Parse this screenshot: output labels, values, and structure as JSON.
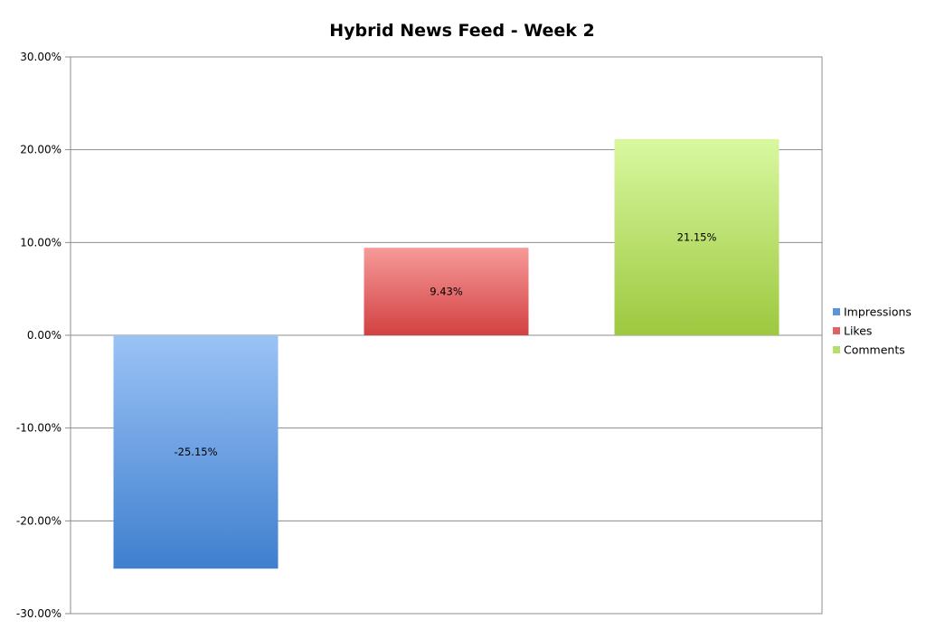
{
  "chart_data": {
    "type": "bar",
    "title": "Hybrid News Feed - Week 2",
    "xlabel": "",
    "ylabel": "",
    "ylim": [
      -30,
      30
    ],
    "yticks": [
      {
        "value": 30,
        "label": "30.00%"
      },
      {
        "value": 20,
        "label": "20.00%"
      },
      {
        "value": 10,
        "label": "10.00%"
      },
      {
        "value": 0,
        "label": "0.00%"
      },
      {
        "value": -10,
        "label": "-10.00%"
      },
      {
        "value": -20,
        "label": "-20.00%"
      },
      {
        "value": -30,
        "label": "-30.00%"
      }
    ],
    "grid": true,
    "legend_position": "right",
    "series": [
      {
        "name": "Impressions",
        "value": -25.15,
        "label": "-25.15%",
        "color": "#5b95d9",
        "color_light": "#9bc3f5",
        "color_dark": "#3f7fcf"
      },
      {
        "name": "Likes",
        "value": 9.43,
        "label": "9.43%",
        "color": "#e06262",
        "color_light": "#f79a9a",
        "color_dark": "#d24141"
      },
      {
        "name": "Comments",
        "value": 21.15,
        "label": "21.15%",
        "color": "#b5df6b",
        "color_light": "#d9f8a0",
        "color_dark": "#9dc83f"
      }
    ]
  }
}
